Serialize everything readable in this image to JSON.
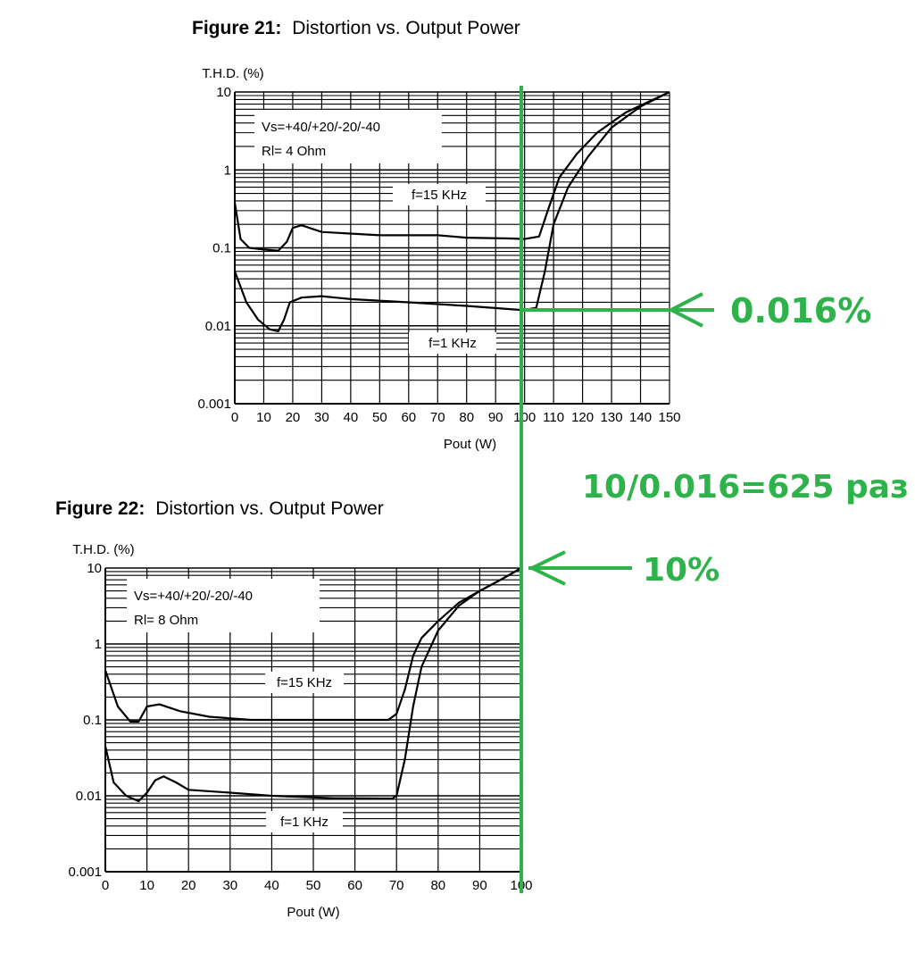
{
  "colors": {
    "annotation": "#2db34a",
    "ink": "#000000",
    "background": "#ffffff"
  },
  "chart_data": [
    {
      "type": "line",
      "figure_label": "Figure 21:",
      "title": "Distortion vs. Output Power",
      "ylabel": "T.H.D. (%)",
      "xlabel": "Pout (W)",
      "yscale": "log",
      "ylim": [
        0.001,
        10
      ],
      "xlim": [
        0,
        150
      ],
      "x_ticks": [
        "0",
        "10",
        "20",
        "30",
        "40",
        "50",
        "60",
        "70",
        "80",
        "90",
        "100",
        "110",
        "120",
        "130",
        "140",
        "150"
      ],
      "y_ticks": [
        "10",
        "1",
        "0.1",
        "0.01",
        "0.001"
      ],
      "conditions": [
        "Vs=+40/+20/-20/-40",
        "Rl= 4 Ohm"
      ],
      "grid": true,
      "series": [
        {
          "name": "f=15 KHz",
          "points": [
            [
              0,
              0.38
            ],
            [
              2,
              0.13
            ],
            [
              5,
              0.1
            ],
            [
              10,
              0.095
            ],
            [
              15,
              0.092
            ],
            [
              18,
              0.12
            ],
            [
              20,
              0.18
            ],
            [
              23,
              0.195
            ],
            [
              30,
              0.16
            ],
            [
              50,
              0.145
            ],
            [
              70,
              0.145
            ],
            [
              80,
              0.135
            ],
            [
              95,
              0.132
            ],
            [
              100,
              0.13
            ],
            [
              105,
              0.14
            ],
            [
              108,
              0.3
            ],
            [
              112,
              0.8
            ],
            [
              118,
              1.6
            ],
            [
              125,
              3.0
            ],
            [
              135,
              5.5
            ],
            [
              150,
              10
            ]
          ]
        },
        {
          "name": "f=1 KHz",
          "points": [
            [
              0,
              0.05
            ],
            [
              4,
              0.02
            ],
            [
              8,
              0.012
            ],
            [
              12,
              0.009
            ],
            [
              15,
              0.0085
            ],
            [
              17,
              0.012
            ],
            [
              19,
              0.02
            ],
            [
              23,
              0.023
            ],
            [
              30,
              0.024
            ],
            [
              40,
              0.022
            ],
            [
              60,
              0.02
            ],
            [
              80,
              0.018
            ],
            [
              98,
              0.016
            ],
            [
              100,
              0.016
            ],
            [
              104,
              0.017
            ],
            [
              107,
              0.05
            ],
            [
              110,
              0.2
            ],
            [
              115,
              0.6
            ],
            [
              122,
              1.5
            ],
            [
              130,
              3.5
            ],
            [
              140,
              6.5
            ],
            [
              150,
              10
            ]
          ]
        }
      ]
    },
    {
      "type": "line",
      "figure_label": "Figure 22:",
      "title": "Distortion vs. Output Power",
      "ylabel": "T.H.D. (%)",
      "xlabel": "Pout (W)",
      "yscale": "log",
      "ylim": [
        0.001,
        10
      ],
      "xlim": [
        0,
        100
      ],
      "x_ticks": [
        "0",
        "10",
        "20",
        "30",
        "40",
        "50",
        "60",
        "70",
        "80",
        "90",
        "100"
      ],
      "y_ticks": [
        "10",
        "1",
        "0.1",
        "0.01",
        "0.001"
      ],
      "conditions": [
        "Vs=+40/+20/-20/-40",
        "Rl= 8 Ohm"
      ],
      "grid": true,
      "series": [
        {
          "name": "f=15 KHz",
          "points": [
            [
              0,
              0.45
            ],
            [
              3,
              0.15
            ],
            [
              6,
              0.095
            ],
            [
              8,
              0.095
            ],
            [
              10,
              0.15
            ],
            [
              13,
              0.16
            ],
            [
              18,
              0.13
            ],
            [
              25,
              0.11
            ],
            [
              35,
              0.1
            ],
            [
              50,
              0.1
            ],
            [
              65,
              0.1
            ],
            [
              68,
              0.1
            ],
            [
              70,
              0.12
            ],
            [
              72,
              0.25
            ],
            [
              74,
              0.7
            ],
            [
              76,
              1.2
            ],
            [
              80,
              2.0
            ],
            [
              85,
              3.5
            ],
            [
              90,
              5.0
            ],
            [
              95,
              7.0
            ],
            [
              100,
              10
            ]
          ]
        },
        {
          "name": "f=1 KHz",
          "points": [
            [
              0,
              0.045
            ],
            [
              2,
              0.015
            ],
            [
              5,
              0.01
            ],
            [
              8,
              0.0085
            ],
            [
              10,
              0.011
            ],
            [
              12,
              0.016
            ],
            [
              14,
              0.018
            ],
            [
              17,
              0.015
            ],
            [
              20,
              0.012
            ],
            [
              30,
              0.011
            ],
            [
              40,
              0.01
            ],
            [
              55,
              0.0093
            ],
            [
              69,
              0.0092
            ],
            [
              70,
              0.01
            ],
            [
              72,
              0.03
            ],
            [
              74,
              0.15
            ],
            [
              76,
              0.5
            ],
            [
              80,
              1.5
            ],
            [
              85,
              3.2
            ],
            [
              90,
              5.0
            ],
            [
              95,
              7.0
            ],
            [
              100,
              10
            ]
          ]
        }
      ]
    }
  ],
  "annotations": {
    "label_top": "0.016%",
    "label_ratio": "10/0.016=625 раз",
    "label_bottom": "10%"
  }
}
